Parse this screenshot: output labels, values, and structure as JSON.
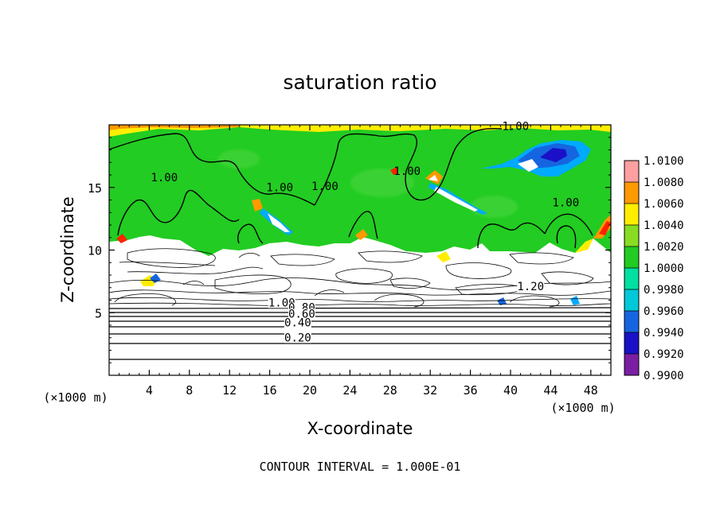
{
  "chart_data": {
    "type": "heatmap",
    "title": "saturation ratio",
    "xlabel": "X-coordinate",
    "ylabel": "Z-coordinate",
    "x_unit": "(×1000 m)",
    "y_unit": "(×1000 m)",
    "xlim": [
      0,
      50
    ],
    "ylim": [
      0,
      20
    ],
    "x_ticks": [
      4,
      8,
      12,
      16,
      20,
      24,
      28,
      32,
      36,
      40,
      44,
      48
    ],
    "y_ticks": [
      5,
      10,
      15
    ],
    "footer": "CONTOUR INTERVAL = 1.000E-01",
    "colorbar": {
      "levels": [
        0.99,
        0.992,
        0.994,
        0.996,
        0.998,
        1.0,
        1.002,
        1.004,
        1.006,
        1.008,
        1.01
      ],
      "labels": [
        "0.9900",
        "0.9920",
        "0.9940",
        "0.9960",
        "0.9980",
        "1.0000",
        "1.0020",
        "1.0040",
        "1.0060",
        "1.0080",
        "1.0100"
      ],
      "colors": [
        "#7b1fa2",
        "#1a10c8",
        "#1565e0",
        "#00aaff",
        "#00e0c0",
        "#22cc22",
        "#88dd22",
        "#ffee00",
        "#ff9900",
        "#ff2200",
        "#ffa0a0"
      ]
    },
    "contour_labels": [
      {
        "text": "1.00",
        "x": 40.5,
        "y": 19.6
      },
      {
        "text": "1.00",
        "x": 5.5,
        "y": 15.5
      },
      {
        "text": "1.00",
        "x": 17.0,
        "y": 14.7
      },
      {
        "text": "1.00",
        "x": 21.5,
        "y": 14.8
      },
      {
        "text": "1.00",
        "x": 29.7,
        "y": 16.0
      },
      {
        "text": "1.00",
        "x": 45.5,
        "y": 13.5
      },
      {
        "text": "1.20",
        "x": 42.0,
        "y": 6.8
      },
      {
        "text": "1.00",
        "x": 17.2,
        "y": 5.5
      },
      {
        "text": "0.80",
        "x": 19.2,
        "y": 5.1
      },
      {
        "text": "0.60",
        "x": 19.2,
        "y": 4.6
      },
      {
        "text": "0.40",
        "x": 18.8,
        "y": 3.9
      },
      {
        "text": "0.20",
        "x": 18.8,
        "y": 2.7
      }
    ],
    "regions": [
      {
        "name": "supersaturated-green",
        "value_approx": 1.0,
        "z_range": [
          9.8,
          19.8
        ]
      },
      {
        "name": "subsaturated-blue-streak",
        "value_approx": 0.994,
        "x_range": [
          38,
          48
        ],
        "z_range": [
          16,
          18
        ]
      },
      {
        "name": "below-color-range-white",
        "z_range": [
          0,
          9.8
        ]
      }
    ]
  }
}
